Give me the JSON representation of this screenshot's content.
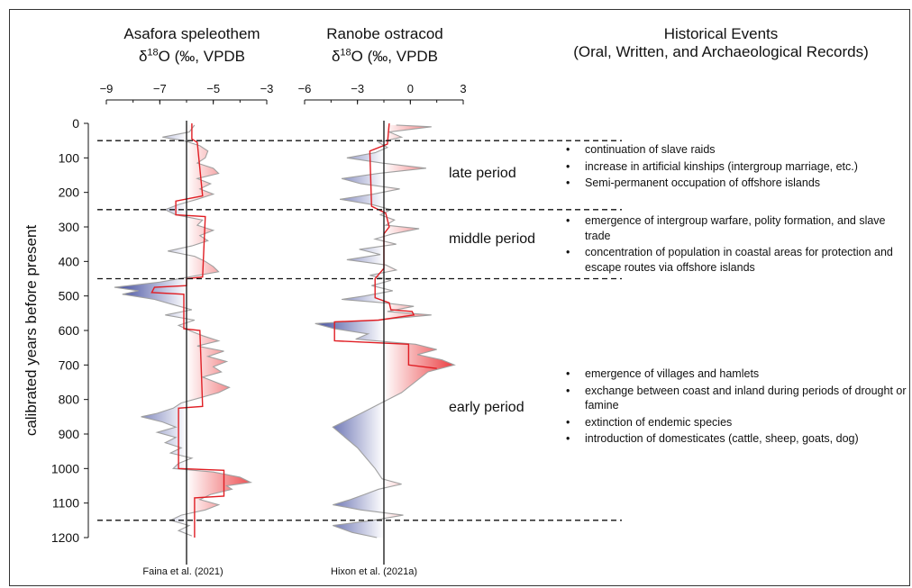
{
  "chart_data": {
    "type": "area",
    "ylabel": "calibrated years before present",
    "ylim": [
      0,
      1200
    ],
    "yticks": [
      0,
      100,
      200,
      300,
      400,
      500,
      600,
      700,
      800,
      900,
      1000,
      1100,
      1200
    ],
    "boundaries": [
      50,
      250,
      450,
      1150
    ],
    "panels": [
      {
        "title_line1": "Asafora speleothem",
        "title_line2": "δ18O (‰, VPDB",
        "xlim": [
          -9,
          -3
        ],
        "xticks": [
          "−9",
          "−7",
          "−5",
          "−3"
        ],
        "xtick_values": [
          -9,
          -7,
          -5,
          -3
        ],
        "baseline": -6,
        "source": "Faina et al. (2021)",
        "series": [
          {
            "y": 5,
            "x": -5.7
          },
          {
            "y": 25,
            "x": -5.9
          },
          {
            "y": 40,
            "x": -6.9
          },
          {
            "y": 50,
            "x": -6.1
          },
          {
            "y": 65,
            "x": -5.5
          },
          {
            "y": 80,
            "x": -5.2
          },
          {
            "y": 100,
            "x": -5.3
          },
          {
            "y": 115,
            "x": -5.6
          },
          {
            "y": 130,
            "x": -5.0
          },
          {
            "y": 145,
            "x": -4.8
          },
          {
            "y": 160,
            "x": -5.6
          },
          {
            "y": 175,
            "x": -5.1
          },
          {
            "y": 190,
            "x": -5.5
          },
          {
            "y": 205,
            "x": -5.0
          },
          {
            "y": 220,
            "x": -5.6
          },
          {
            "y": 235,
            "x": -6.3
          },
          {
            "y": 250,
            "x": -6.8
          },
          {
            "y": 265,
            "x": -6.4
          },
          {
            "y": 280,
            "x": -5.4
          },
          {
            "y": 295,
            "x": -5.6
          },
          {
            "y": 310,
            "x": -5.0
          },
          {
            "y": 325,
            "x": -5.5
          },
          {
            "y": 340,
            "x": -5.2
          },
          {
            "y": 355,
            "x": -5.8
          },
          {
            "y": 370,
            "x": -6.7
          },
          {
            "y": 385,
            "x": -5.7
          },
          {
            "y": 400,
            "x": -5.3
          },
          {
            "y": 415,
            "x": -5.0
          },
          {
            "y": 430,
            "x": -4.8
          },
          {
            "y": 445,
            "x": -5.9
          },
          {
            "y": 460,
            "x": -7.0
          },
          {
            "y": 475,
            "x": -8.7
          },
          {
            "y": 485,
            "x": -7.8
          },
          {
            "y": 495,
            "x": -8.4
          },
          {
            "y": 510,
            "x": -7.2
          },
          {
            "y": 525,
            "x": -6.5
          },
          {
            "y": 540,
            "x": -5.8
          },
          {
            "y": 555,
            "x": -6.8
          },
          {
            "y": 570,
            "x": -5.7
          },
          {
            "y": 585,
            "x": -6.3
          },
          {
            "y": 600,
            "x": -5.9
          },
          {
            "y": 615,
            "x": -5.4
          },
          {
            "y": 630,
            "x": -4.8
          },
          {
            "y": 645,
            "x": -5.6
          },
          {
            "y": 660,
            "x": -4.6
          },
          {
            "y": 675,
            "x": -5.2
          },
          {
            "y": 690,
            "x": -4.5
          },
          {
            "y": 705,
            "x": -5.0
          },
          {
            "y": 720,
            "x": -4.7
          },
          {
            "y": 735,
            "x": -5.4
          },
          {
            "y": 750,
            "x": -4.9
          },
          {
            "y": 765,
            "x": -4.4
          },
          {
            "y": 780,
            "x": -4.8
          },
          {
            "y": 795,
            "x": -5.5
          },
          {
            "y": 810,
            "x": -6.2
          },
          {
            "y": 825,
            "x": -6.5
          },
          {
            "y": 840,
            "x": -7.1
          },
          {
            "y": 850,
            "x": -7.7
          },
          {
            "y": 865,
            "x": -6.9
          },
          {
            "y": 880,
            "x": -6.4
          },
          {
            "y": 895,
            "x": -7.1
          },
          {
            "y": 910,
            "x": -6.4
          },
          {
            "y": 925,
            "x": -6.8
          },
          {
            "y": 940,
            "x": -6.2
          },
          {
            "y": 955,
            "x": -6.6
          },
          {
            "y": 970,
            "x": -5.8
          },
          {
            "y": 985,
            "x": -6.3
          },
          {
            "y": 1000,
            "x": -6.5
          },
          {
            "y": 1010,
            "x": -5.0
          },
          {
            "y": 1025,
            "x": -4.0
          },
          {
            "y": 1040,
            "x": -3.6
          },
          {
            "y": 1050,
            "x": -4.5
          },
          {
            "y": 1060,
            "x": -4.3
          },
          {
            "y": 1075,
            "x": -5.1
          },
          {
            "y": 1090,
            "x": -5.5
          },
          {
            "y": 1105,
            "x": -4.8
          },
          {
            "y": 1120,
            "x": -5.3
          },
          {
            "y": 1135,
            "x": -6.2
          },
          {
            "y": 1150,
            "x": -6.6
          },
          {
            "y": 1165,
            "x": -5.9
          },
          {
            "y": 1180,
            "x": -6.3
          },
          {
            "y": 1195,
            "x": -5.8
          }
        ],
        "mean_line": [
          {
            "y": 0,
            "x": -5.8
          },
          {
            "y": 45,
            "x": -5.8
          },
          {
            "y": 55,
            "x": -5.6
          },
          {
            "y": 210,
            "x": -5.4
          },
          {
            "y": 225,
            "x": -6.4
          },
          {
            "y": 265,
            "x": -6.4
          },
          {
            "y": 270,
            "x": -5.3
          },
          {
            "y": 445,
            "x": -5.4
          },
          {
            "y": 450,
            "x": -6.0
          },
          {
            "y": 470,
            "x": -6.0
          },
          {
            "y": 475,
            "x": -7.2
          },
          {
            "y": 490,
            "x": -7.3
          },
          {
            "y": 495,
            "x": -6.1
          },
          {
            "y": 595,
            "x": -6.1
          },
          {
            "y": 600,
            "x": -5.5
          },
          {
            "y": 820,
            "x": -5.4
          },
          {
            "y": 825,
            "x": -6.3
          },
          {
            "y": 1000,
            "x": -6.3
          },
          {
            "y": 1005,
            "x": -4.6
          },
          {
            "y": 1080,
            "x": -4.6
          },
          {
            "y": 1085,
            "x": -5.7
          },
          {
            "y": 1200,
            "x": -5.7
          }
        ]
      },
      {
        "title_line1": "Ranobe ostracod",
        "title_line2": "δ18O (‰, VPDB",
        "xlim": [
          -6,
          3
        ],
        "xticks": [
          "−6",
          "−3",
          "0",
          "3"
        ],
        "xtick_values": [
          -6,
          -3,
          0,
          3
        ],
        "baseline": -1.5,
        "source": "Hixon et al. (2021a)",
        "series": [
          {
            "y": 5,
            "x": -0.8
          },
          {
            "y": 10,
            "x": 1.2
          },
          {
            "y": 25,
            "x": -1.2
          },
          {
            "y": 40,
            "x": -0.5
          },
          {
            "y": 55,
            "x": -1.8
          },
          {
            "y": 70,
            "x": -1.3
          },
          {
            "y": 85,
            "x": -2.0
          },
          {
            "y": 100,
            "x": -3.6
          },
          {
            "y": 115,
            "x": -1.6
          },
          {
            "y": 130,
            "x": 0.9
          },
          {
            "y": 145,
            "x": -1.8
          },
          {
            "y": 160,
            "x": -3.9
          },
          {
            "y": 175,
            "x": -2.8
          },
          {
            "y": 190,
            "x": -0.6
          },
          {
            "y": 205,
            "x": -2.1
          },
          {
            "y": 220,
            "x": -4.0
          },
          {
            "y": 235,
            "x": -2.2
          },
          {
            "y": 250,
            "x": -1.1
          },
          {
            "y": 265,
            "x": -1.7
          },
          {
            "y": 280,
            "x": -0.9
          },
          {
            "y": 295,
            "x": -1.4
          },
          {
            "y": 305,
            "x": 0.5
          },
          {
            "y": 320,
            "x": -1.0
          },
          {
            "y": 335,
            "x": -2.0
          },
          {
            "y": 350,
            "x": -0.8
          },
          {
            "y": 365,
            "x": -2.9
          },
          {
            "y": 380,
            "x": -1.7
          },
          {
            "y": 395,
            "x": -3.6
          },
          {
            "y": 410,
            "x": -1.4
          },
          {
            "y": 425,
            "x": -0.8
          },
          {
            "y": 440,
            "x": -2.3
          },
          {
            "y": 455,
            "x": -1.1
          },
          {
            "y": 470,
            "x": -2.2
          },
          {
            "y": 485,
            "x": -1.0
          },
          {
            "y": 500,
            "x": -2.6
          },
          {
            "y": 510,
            "x": -3.9
          },
          {
            "y": 520,
            "x": -1.5
          },
          {
            "y": 530,
            "x": 0.2
          },
          {
            "y": 545,
            "x": -1.3
          },
          {
            "y": 555,
            "x": 1.2
          },
          {
            "y": 570,
            "x": -1.9
          },
          {
            "y": 580,
            "x": -5.4
          },
          {
            "y": 595,
            "x": -4.3
          },
          {
            "y": 610,
            "x": -2.4
          },
          {
            "y": 625,
            "x": -3.1
          },
          {
            "y": 640,
            "x": 0.3
          },
          {
            "y": 655,
            "x": 1.5
          },
          {
            "y": 670,
            "x": 0.4
          },
          {
            "y": 685,
            "x": 1.8
          },
          {
            "y": 700,
            "x": 2.5
          },
          {
            "y": 720,
            "x": 1.0
          },
          {
            "y": 780,
            "x": -0.5
          },
          {
            "y": 840,
            "x": -2.8
          },
          {
            "y": 880,
            "x": -4.4
          },
          {
            "y": 940,
            "x": -3.0
          },
          {
            "y": 1000,
            "x": -2.0
          },
          {
            "y": 1030,
            "x": -1.6
          },
          {
            "y": 1045,
            "x": -0.5
          },
          {
            "y": 1060,
            "x": -1.8
          },
          {
            "y": 1075,
            "x": -2.6
          },
          {
            "y": 1090,
            "x": -3.4
          },
          {
            "y": 1105,
            "x": -4.4
          },
          {
            "y": 1120,
            "x": -2.8
          },
          {
            "y": 1135,
            "x": -0.4
          },
          {
            "y": 1150,
            "x": -2.1
          },
          {
            "y": 1165,
            "x": -4.4
          },
          {
            "y": 1185,
            "x": -3.3
          },
          {
            "y": 1200,
            "x": -1.9
          }
        ],
        "mean_line": [
          {
            "y": 0,
            "x": -1.2
          },
          {
            "y": 60,
            "x": -1.3
          },
          {
            "y": 80,
            "x": -2.3
          },
          {
            "y": 240,
            "x": -2.2
          },
          {
            "y": 260,
            "x": -1.4
          },
          {
            "y": 300,
            "x": -1.2
          },
          {
            "y": 320,
            "x": -1.5
          },
          {
            "y": 420,
            "x": -1.5
          },
          {
            "y": 450,
            "x": -2.0
          },
          {
            "y": 505,
            "x": -2.0
          },
          {
            "y": 520,
            "x": -1.2
          },
          {
            "y": 540,
            "x": -1.1
          },
          {
            "y": 545,
            "x": 0.1
          },
          {
            "y": 555,
            "x": 0.2
          },
          {
            "y": 570,
            "x": -1.8
          },
          {
            "y": 575,
            "x": -4.3
          },
          {
            "y": 630,
            "x": -4.3
          },
          {
            "y": 640,
            "x": -0.1
          },
          {
            "y": 700,
            "x": -0.1
          },
          {
            "y": 710,
            "x": 1.5
          }
        ]
      }
    ],
    "events_title_line1": "Historical Events",
    "events_title_line2": "(Oral, Written, and Archaeological Records)",
    "periods": [
      {
        "name": "late period",
        "events": [
          "continuation of slave raids",
          "increase in artificial kinships (intergroup marriage, etc.)",
          "Semi-permanent occupation of offshore islands"
        ]
      },
      {
        "name": "middle period",
        "events": [
          "emergence of intergroup warfare, polity formation, and slave trade",
          "concentration of population in coastal areas for protection and escape routes via offshore islands"
        ]
      },
      {
        "name": "early period",
        "events": [
          "emergence of villages and hamlets",
          "exchange between coast and inland during periods of drought or famine",
          "extinction of endemic species",
          "introduction of domesticates (cattle, sheep, goats, dog)"
        ]
      }
    ],
    "colors": {
      "warm": "#e8262a",
      "cool": "#23308f",
      "outline": "#a0a0a0",
      "mean": "#e01e24",
      "axis": "#111111"
    }
  }
}
